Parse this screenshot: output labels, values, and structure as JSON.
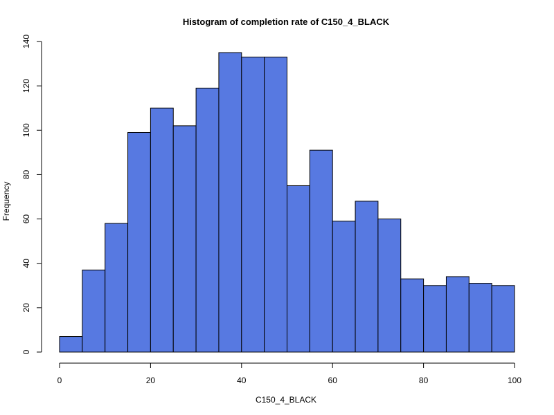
{
  "chart_data": {
    "type": "bar",
    "title": "Histogram of completion rate of  C150_4_BLACK",
    "xlabel": "C150_4_BLACK",
    "ylabel": "Frequency",
    "bin_edges": [
      0,
      5,
      10,
      15,
      20,
      25,
      30,
      35,
      40,
      45,
      50,
      55,
      60,
      65,
      70,
      75,
      80,
      85,
      90,
      95,
      100
    ],
    "values": [
      7,
      37,
      58,
      99,
      110,
      102,
      119,
      135,
      133,
      133,
      75,
      91,
      59,
      68,
      60,
      33,
      30,
      34,
      31,
      30
    ],
    "xlim": [
      0,
      100
    ],
    "ylim": [
      0,
      140
    ],
    "x_ticks": [
      0,
      20,
      40,
      60,
      80,
      100
    ],
    "y_ticks": [
      0,
      20,
      40,
      60,
      80,
      100,
      120,
      140
    ],
    "bar_color": "#5779E1",
    "grid": false,
    "legend": "none"
  }
}
